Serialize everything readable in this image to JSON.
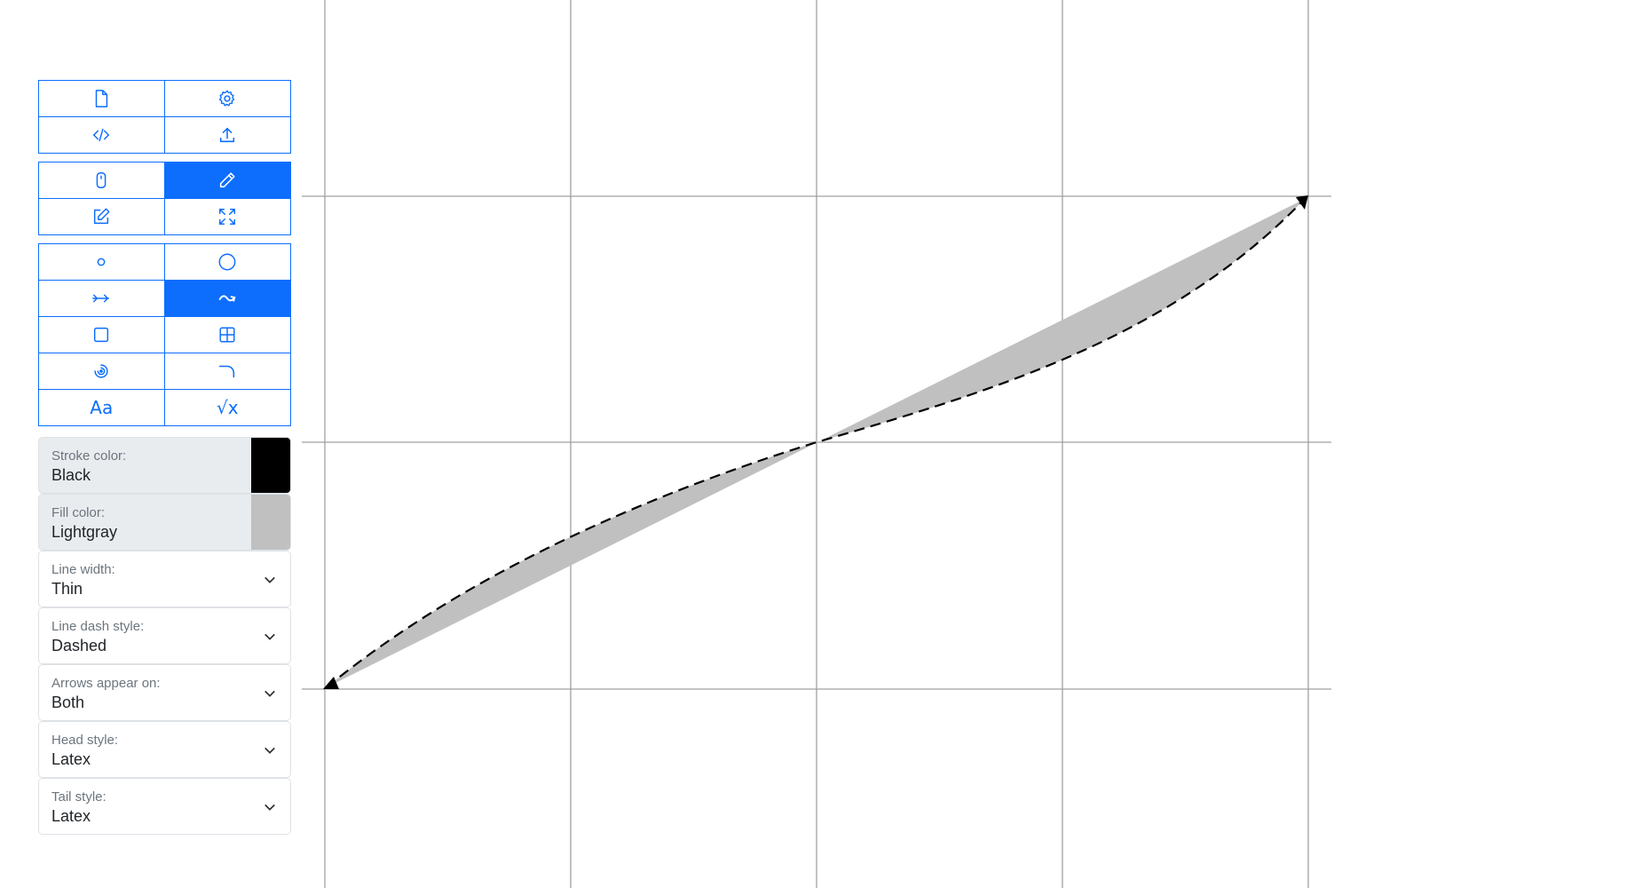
{
  "toolbar": {
    "groups": [
      {
        "buttons": [
          {
            "name": "new-file-button",
            "icon": "file-icon",
            "active": false
          },
          {
            "name": "settings-button",
            "icon": "gear-icon",
            "active": false
          },
          {
            "name": "code-button",
            "icon": "code-icon",
            "active": false
          },
          {
            "name": "upload-button",
            "icon": "upload-icon",
            "active": false
          }
        ]
      },
      {
        "buttons": [
          {
            "name": "select-mode-button",
            "icon": "mouse-icon",
            "active": false
          },
          {
            "name": "draw-mode-button",
            "icon": "pencil-icon",
            "active": true
          },
          {
            "name": "edit-mode-button",
            "icon": "edit-icon",
            "active": false
          },
          {
            "name": "fit-view-button",
            "icon": "expand-icon",
            "active": false
          }
        ]
      },
      {
        "buttons": [
          {
            "name": "point-tool-button",
            "icon": "point-icon",
            "active": false
          },
          {
            "name": "circle-tool-button",
            "icon": "circle-icon",
            "active": false
          },
          {
            "name": "arrow-tool-button",
            "icon": "arrow-icon",
            "active": false
          },
          {
            "name": "curve-tool-button",
            "icon": "curve-icon",
            "active": true
          },
          {
            "name": "rectangle-tool-button",
            "icon": "square-icon",
            "active": false
          },
          {
            "name": "grid-tool-button",
            "icon": "grid-icon",
            "active": false
          },
          {
            "name": "spiral-tool-button",
            "icon": "spiral-icon",
            "active": false
          },
          {
            "name": "arc-tool-button",
            "icon": "arc-icon",
            "active": false
          },
          {
            "name": "text-tool-button",
            "icon": "text-icon",
            "label": "Aa",
            "active": false
          },
          {
            "name": "math-tool-button",
            "icon": "sqrt-icon",
            "label": "√x",
            "active": false
          }
        ]
      }
    ]
  },
  "properties": {
    "stroke_color": {
      "label": "Stroke color:",
      "value": "Black",
      "swatch": "#000000"
    },
    "fill_color": {
      "label": "Fill color:",
      "value": "Lightgray",
      "swatch": "#c0c0c0"
    },
    "line_width": {
      "label": "Line width:",
      "value": "Thin"
    },
    "line_dash_style": {
      "label": "Line dash style:",
      "value": "Dashed"
    },
    "arrows_appear_on": {
      "label": "Arrows appear on:",
      "value": "Both"
    },
    "head_style": {
      "label": "Head style:",
      "value": "Latex"
    },
    "tail_style": {
      "label": "Tail style:",
      "value": "Latex"
    }
  },
  "colors": {
    "accent": "#0d6efd",
    "grid": "#a0a0a0",
    "fill": "#c0c0c0",
    "stroke": "#000000"
  }
}
